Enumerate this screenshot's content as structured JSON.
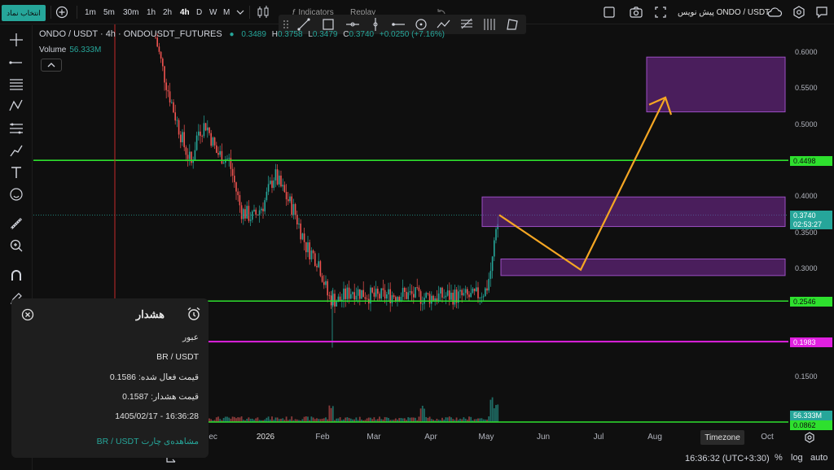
{
  "topbar": {
    "select_symbol": "انتخاب نماد",
    "intervals": [
      "1m",
      "5m",
      "30m",
      "1h",
      "2h",
      "4h",
      "D",
      "W",
      "M"
    ],
    "active_interval": "4h",
    "indicators_label": "Indicators",
    "replay_label": "Replay",
    "forecast_label": "پیش نویس",
    "pair_label": "ONDO / USDT"
  },
  "legend": {
    "symbol": "ONDO / USDT · 4h · ONDOUSDT_FUTURES",
    "open": "0.3489",
    "high_prefix": "H",
    "high": "0.3758",
    "low_prefix": "L",
    "low": "0.3479",
    "close_prefix": "C",
    "close": "0.3740",
    "change": "+0.0250 (+7.16%)"
  },
  "volume": {
    "label": "Volume",
    "value": "56.333M"
  },
  "price_axis": {
    "ticks": [
      "0.6000",
      "0.5500",
      "0.5000",
      "0.4000",
      "0.3500",
      "0.3000",
      "0.1500"
    ],
    "labels": {
      "line_upper": "0.4498",
      "last_price": "0.3740",
      "countdown": "02:53:27",
      "line_support": "0.2546",
      "line_alert": "0.1983",
      "volume_value": "56.333M",
      "bottom_line": "0.0862"
    },
    "colors": {
      "green": "#2ee02e",
      "magenta": "#e020e0",
      "last": "#26a69a"
    }
  },
  "time_axis": {
    "ticks": [
      "Dec",
      "2026",
      "Feb",
      "Mar",
      "Apr",
      "May",
      "Jun",
      "Jul",
      "Aug",
      "Oct"
    ],
    "timezone_tip": "Timezone"
  },
  "bottombar": {
    "clock": "16:36:32 (UTC+3:30)",
    "percent": "%",
    "log": "log",
    "auto": "auto"
  },
  "alert": {
    "title": "هشدار",
    "type": "عبور",
    "pair": "BR / USDT",
    "active_price": "قیمت فعال شده: 0.1586",
    "alert_price": "قیمت هشدار: 0.1587",
    "datetime": "16:36:28 - 1405/02/17",
    "view_chart": "مشاهده‌ی چارت BR / USDT"
  }
}
